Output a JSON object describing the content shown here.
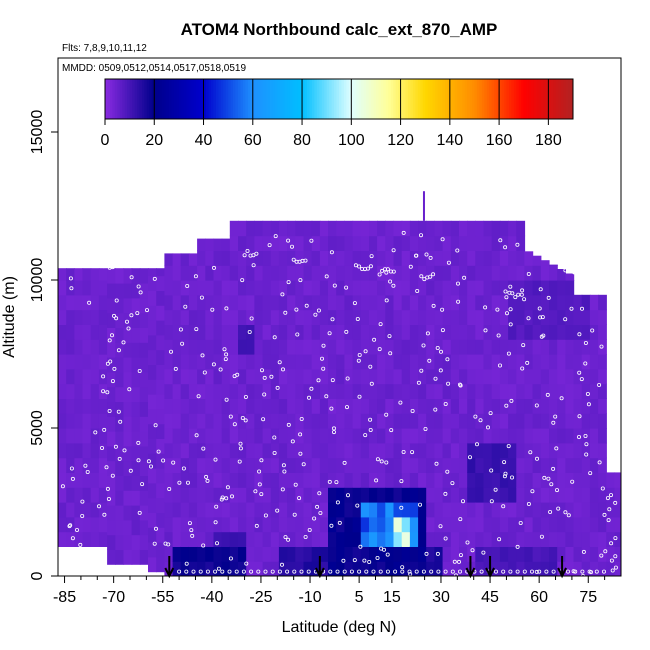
{
  "chart_data": {
    "type": "heatmap",
    "title": "ATOM4 Northbound calc_ext_870_AMP",
    "subtitle_flights": "Flts: 7,8,9,10,11,12",
    "subtitle_dates": "MMDD: 0509,0512,0514,0517,0518,0519",
    "xlabel": "Latitude (deg N)",
    "ylabel": "Altitude (m)",
    "xlim": [
      -87,
      85
    ],
    "ylim": [
      0,
      17500
    ],
    "x_ticks": [
      -85,
      -70,
      -55,
      -40,
      -25,
      -10,
      5,
      15,
      30,
      45,
      60,
      75
    ],
    "x_minor_ticks": [
      -80,
      -75,
      -65,
      -60,
      -50,
      -45,
      -35,
      -30,
      -20,
      -15,
      -5,
      0,
      10,
      20,
      25,
      35,
      40,
      50,
      55,
      65,
      70,
      80
    ],
    "y_ticks": [
      0,
      5000,
      10000,
      15000
    ],
    "colorbar": {
      "ticks": [
        0,
        20,
        40,
        60,
        80,
        100,
        120,
        140,
        160,
        180
      ],
      "range": [
        0,
        190
      ],
      "colors": [
        "#8a2be2",
        "#00008b",
        "#0000cd",
        "#1e90ff",
        "#00bfff",
        "#e0ffff",
        "#ffff99",
        "#ffd700",
        "#ff8c00",
        "#ff0000",
        "#b22222"
      ],
      "color_stops": [
        0,
        20,
        40,
        60,
        80,
        100,
        115,
        130,
        150,
        170,
        190
      ]
    },
    "background_value": 3,
    "enhanced_regions": [
      {
        "name": "southern-ocean-surface",
        "lat": [
          -52,
          -30
        ],
        "alt": [
          0,
          1000
        ],
        "value": 18
      },
      {
        "name": "southern-ocean-column",
        "lat": [
          -40,
          -30
        ],
        "alt": [
          1000,
          1600
        ],
        "value": 12
      },
      {
        "name": "southern-upper-plume",
        "lat": [
          -31,
          -28
        ],
        "alt": [
          7500,
          8700
        ],
        "value": 12
      },
      {
        "name": "tropical-column",
        "lat": [
          -5,
          25
        ],
        "alt": [
          0,
          3000
        ],
        "value": 20
      },
      {
        "name": "tropical-core",
        "lat": [
          5,
          22
        ],
        "alt": [
          1000,
          2500
        ],
        "value": 55
      },
      {
        "name": "tropical-peak",
        "lat": [
          15,
          20
        ],
        "alt": [
          1000,
          2000
        ],
        "value": 92
      },
      {
        "name": "tropical-marine-surface",
        "lat": [
          -20,
          30
        ],
        "alt": [
          0,
          800
        ],
        "value": 15
      },
      {
        "name": "midlat-plume",
        "lat": [
          38,
          52
        ],
        "alt": [
          2500,
          4500
        ],
        "value": 12
      },
      {
        "name": "midlat-surface",
        "lat": [
          40,
          65
        ],
        "alt": [
          0,
          800
        ],
        "value": 10
      },
      {
        "name": "midlat-upper",
        "lat": [
          50,
          75
        ],
        "alt": [
          8000,
          10000
        ],
        "value": 8
      }
    ],
    "profile_markers": [
      {
        "lat": -53,
        "symbol": "arrow-down"
      },
      {
        "lat": -7,
        "symbol": "arrow-down"
      },
      {
        "lat": 39,
        "symbol": "arrow-down"
      },
      {
        "lat": 45,
        "symbol": "arrow-down"
      },
      {
        "lat": 67,
        "symbol": "arrow-down"
      }
    ],
    "observations_note": "Open circles mark individual 1-s sample locations along flight tracks"
  }
}
